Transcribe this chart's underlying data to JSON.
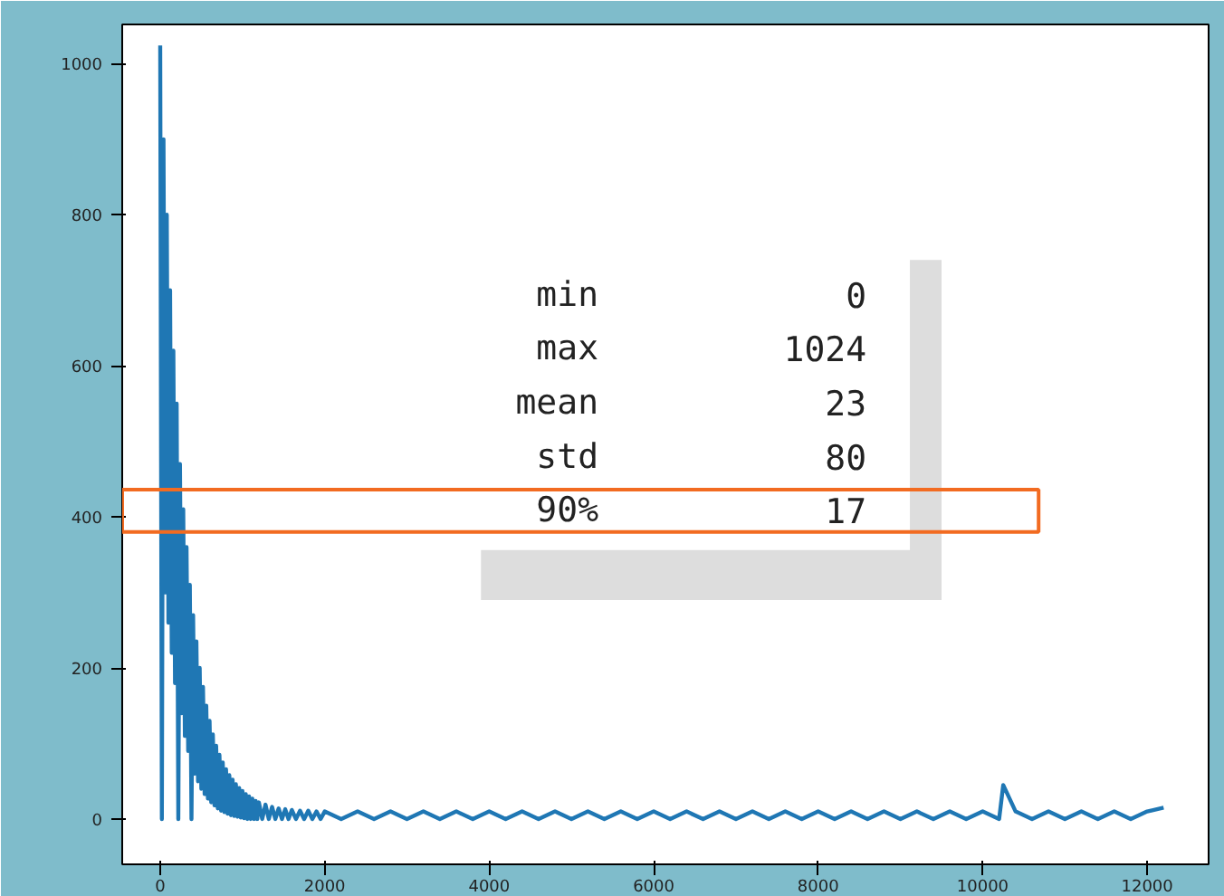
{
  "chart_data": {
    "type": "line",
    "x": [
      0,
      20,
      40,
      60,
      80,
      100,
      120,
      140,
      160,
      180,
      200,
      220,
      240,
      260,
      280,
      300,
      320,
      340,
      360,
      380,
      400,
      420,
      440,
      460,
      480,
      500,
      520,
      540,
      560,
      580,
      600,
      620,
      640,
      660,
      680,
      700,
      720,
      740,
      760,
      780,
      800,
      820,
      840,
      860,
      880,
      900,
      920,
      940,
      960,
      980,
      1000,
      1020,
      1040,
      1060,
      1080,
      1100,
      1120,
      1140,
      1160,
      1180,
      1200,
      1240,
      1280,
      1320,
      1360,
      1400,
      1440,
      1480,
      1520,
      1560,
      1600,
      1650,
      1700,
      1750,
      1800,
      1850,
      1900,
      1950,
      2000,
      2200,
      2400,
      2600,
      2800,
      3000,
      3200,
      3400,
      3600,
      3800,
      4000,
      4200,
      4400,
      4600,
      4800,
      5000,
      5200,
      5400,
      5600,
      5800,
      6000,
      6200,
      6400,
      6600,
      6800,
      7000,
      7200,
      7400,
      7600,
      7800,
      8000,
      8200,
      8400,
      8600,
      8800,
      9000,
      9200,
      9400,
      9600,
      9800,
      10000,
      10200,
      10250,
      10400,
      10600,
      10800,
      11000,
      11200,
      11400,
      11600,
      11800,
      12000,
      12200
    ],
    "series": [
      {
        "color": "#1f77b4",
        "values": [
          1024,
          0,
          900,
          300,
          800,
          260,
          700,
          220,
          620,
          180,
          550,
          0,
          470,
          140,
          410,
          110,
          360,
          90,
          310,
          0,
          270,
          60,
          235,
          50,
          200,
          40,
          175,
          33,
          150,
          27,
          130,
          22,
          112,
          18,
          97,
          14,
          85,
          11,
          75,
          9,
          66,
          7,
          58,
          5,
          52,
          4,
          46,
          3,
          41,
          2,
          37,
          1,
          33,
          0,
          30,
          0,
          27,
          0,
          24,
          0,
          22,
          0,
          19,
          0,
          16,
          0,
          14,
          0,
          13,
          0,
          12,
          0,
          11,
          0,
          11,
          0,
          10,
          0,
          10,
          0,
          10,
          0,
          10,
          0,
          10,
          0,
          10,
          0,
          10,
          0,
          10,
          0,
          10,
          0,
          10,
          0,
          10,
          0,
          10,
          0,
          10,
          0,
          10,
          0,
          10,
          0,
          10,
          0,
          10,
          0,
          10,
          0,
          10,
          0,
          10,
          0,
          10,
          0,
          10,
          0,
          45,
          10,
          0,
          10,
          0,
          10,
          0,
          10,
          0,
          10,
          15
        ]
      }
    ],
    "xlim": [
      -462,
      12747
    ],
    "ylim": [
      -60,
      1052
    ],
    "xticks": [
      0,
      2000,
      4000,
      6000,
      8000,
      10000,
      12000
    ],
    "yticks": [
      0,
      200,
      400,
      600,
      800,
      1000
    ],
    "grid": false,
    "line_style": "solid",
    "marker": "none",
    "annotations": [
      "min",
      "0",
      "max",
      "1024",
      "mean",
      "23",
      "std",
      "80",
      "90%",
      "17"
    ]
  }
}
